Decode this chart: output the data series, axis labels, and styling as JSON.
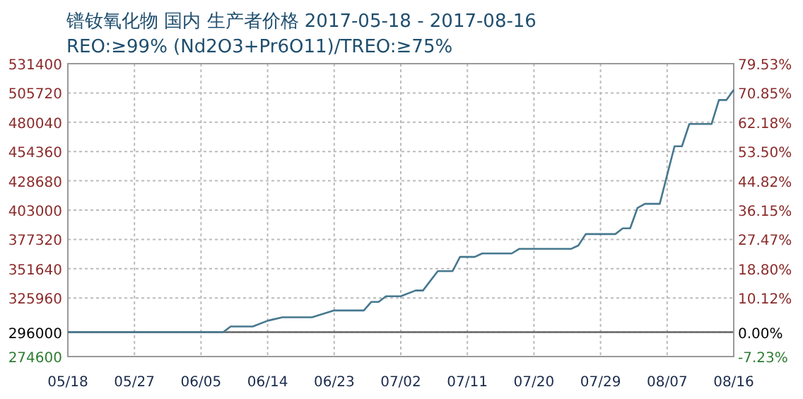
{
  "chart_data": {
    "type": "line",
    "title": "镨钕氧化物 国内 生产者价格 2017-05-18 - 2017-08-16",
    "subtitle": "REO:≥99% (Nd2O3+Pr6O11)/TREO:≥75%",
    "x": [
      "--05-18",
      "--06-08",
      "--06-09",
      "--06-12",
      "--06-14",
      "--06-16",
      "--06-20",
      "--06-23",
      "--06-27",
      "--06-28",
      "--06-29",
      "--06-30",
      "--07-02",
      "--07-04",
      "--07-05",
      "--07-07",
      "--07-09",
      "--07-10",
      "--07-12",
      "--07-13",
      "--07-17",
      "--07-18",
      "--07-25",
      "--07-26",
      "--07-27",
      "--07-31",
      "--08-01",
      "--08-02",
      "--08-03",
      "--08-04",
      "--08-06",
      "--08-08",
      "--08-09",
      "--08-10",
      "--08-13",
      "--08-14",
      "--08-15",
      "--08-16"
    ],
    "series": [
      {
        "color": "#46788f",
        "values": [
          296000,
          296000,
          301000,
          301000,
          306000,
          309000,
          309000,
          315000,
          315000,
          322500,
          322500,
          327500,
          327500,
          332500,
          332500,
          349500,
          349500,
          362000,
          362000,
          365000,
          365000,
          369000,
          369000,
          372000,
          382000,
          382000,
          387000,
          387000,
          405000,
          408500,
          408500,
          459000,
          459000,
          478500,
          478500,
          499500,
          499500,
          508500
        ]
      }
    ],
    "xlim": [
      "--05-18",
      "--08-16"
    ],
    "xticks": [
      {
        "value": "--05-18",
        "label": "05/18"
      },
      {
        "value": "--05-27",
        "label": "05/27"
      },
      {
        "value": "--06-05",
        "label": "06/05"
      },
      {
        "value": "--06-14",
        "label": "06/14"
      },
      {
        "value": "--06-23",
        "label": "06/23"
      },
      {
        "value": "--07-02",
        "label": "07/02"
      },
      {
        "value": "--07-11",
        "label": "07/11"
      },
      {
        "value": "--07-20",
        "label": "07/20"
      },
      {
        "value": "--07-29",
        "label": "07/29"
      },
      {
        "value": "--08-07",
        "label": "08/07"
      },
      {
        "value": "--08-16",
        "label": "08/16"
      }
    ],
    "ylim": [
      274600,
      531400
    ],
    "yticks": [
      274600,
      296000,
      325960,
      351640,
      377320,
      403000,
      428680,
      454360,
      480040,
      505720,
      531400
    ],
    "y2lim": [
      -7.23,
      79.53
    ],
    "y2ticks": [
      {
        "value": -7.23,
        "label": "-7.23%"
      },
      {
        "value": 0,
        "label": "0.00%"
      },
      {
        "value": 10.12,
        "label": "10.12%"
      },
      {
        "value": 18.8,
        "label": "18.80%"
      },
      {
        "value": 27.47,
        "label": "27.47%"
      },
      {
        "value": 36.15,
        "label": "36.15%"
      },
      {
        "value": 44.82,
        "label": "44.82%"
      },
      {
        "value": 53.5,
        "label": "53.50%"
      },
      {
        "value": 62.18,
        "label": "62.18%"
      },
      {
        "value": 70.85,
        "label": "70.85%"
      },
      {
        "value": 79.53,
        "label": "79.53%"
      }
    ],
    "ref_lines": [
      {
        "axis": "y",
        "value": 296000,
        "color": "#666666"
      }
    ],
    "grid": true
  }
}
